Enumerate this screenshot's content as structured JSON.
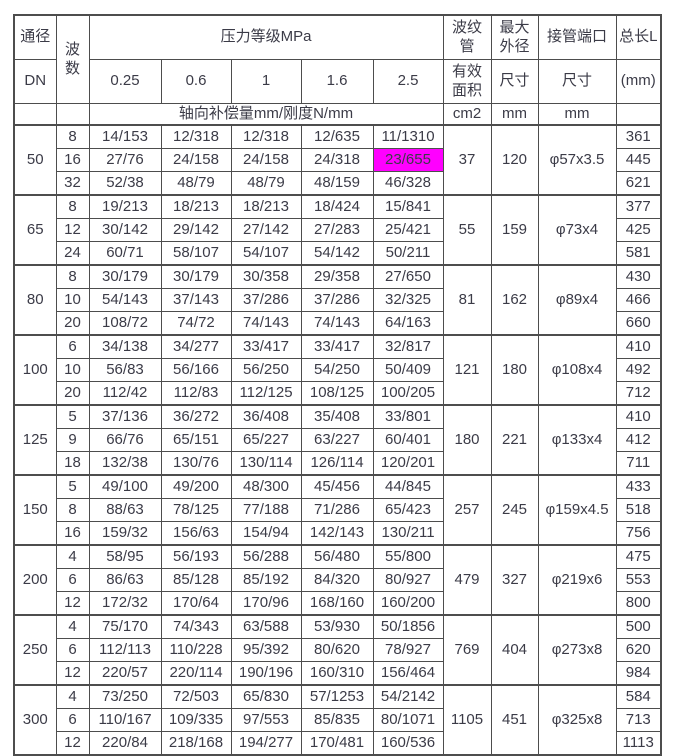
{
  "meta": {
    "table_title": "波纹管补偿器规格参数表"
  },
  "colors": {
    "text": "#3b3b47",
    "border": "#4d4d4d",
    "highlight": "#ff00ff",
    "background": "#ffffff"
  },
  "header": {
    "dn_line1": "通径",
    "dn_line2": "DN",
    "waves_label": "波\n数",
    "pressure_title": "压力等级MPa",
    "pressure_levels": [
      "0.25",
      "0.6",
      "1",
      "1.6",
      "2.5"
    ],
    "axial_label": "轴向补偿量mm/刚度N/mm",
    "bellows_line1": "波纹\n管",
    "bellows_line2": "有效\n面积",
    "bellows_unit": "cm2",
    "max_od_line1": "最大\n外径",
    "max_od_line2": "尺寸",
    "max_od_unit": "mm",
    "port_line1": "接管端口",
    "port_line2": "尺寸",
    "port_unit": "mm",
    "length_line1": "总长L",
    "length_line2": "(mm)",
    "length_unit": ""
  },
  "groups": [
    {
      "dn": "50",
      "area": "37",
      "max_od": "120",
      "port": "φ57x3.5",
      "rows": [
        {
          "waves": "8",
          "values": [
            "14/153",
            "12/318",
            "12/318",
            "12/635",
            "11/1310"
          ],
          "length": "361"
        },
        {
          "waves": "16",
          "values": [
            "27/76",
            "24/158",
            "24/158",
            "24/318",
            "23/655"
          ],
          "length": "445",
          "highlight": 4
        },
        {
          "waves": "32",
          "values": [
            "52/38",
            "48/79",
            "48/79",
            "48/159",
            "46/328"
          ],
          "length": "621"
        }
      ]
    },
    {
      "dn": "65",
      "area": "55",
      "max_od": "159",
      "port": "φ73x4",
      "rows": [
        {
          "waves": "8",
          "values": [
            "19/213",
            "18/213",
            "18/213",
            "18/424",
            "15/841"
          ],
          "length": "377"
        },
        {
          "waves": "12",
          "values": [
            "30/142",
            "29/142",
            "27/142",
            "27/283",
            "25/421"
          ],
          "length": "425"
        },
        {
          "waves": "24",
          "values": [
            "60/71",
            "58/107",
            "54/107",
            "54/142",
            "50/211"
          ],
          "length": "581"
        }
      ]
    },
    {
      "dn": "80",
      "area": "81",
      "max_od": "162",
      "port": "φ89x4",
      "rows": [
        {
          "waves": "8",
          "values": [
            "30/179",
            "30/179",
            "30/358",
            "29/358",
            "27/650"
          ],
          "length": "430"
        },
        {
          "waves": "10",
          "values": [
            "54/143",
            "37/143",
            "37/286",
            "37/286",
            "32/325"
          ],
          "length": "466"
        },
        {
          "waves": "20",
          "values": [
            "108/72",
            "74/72",
            "74/143",
            "74/143",
            "64/163"
          ],
          "length": "660"
        }
      ]
    },
    {
      "dn": "100",
      "area": "121",
      "max_od": "180",
      "port": "φ108x4",
      "rows": [
        {
          "waves": "6",
          "values": [
            "34/138",
            "34/277",
            "33/417",
            "33/417",
            "32/817"
          ],
          "length": "410"
        },
        {
          "waves": "10",
          "values": [
            "56/83",
            "56/166",
            "56/250",
            "54/250",
            "50/409"
          ],
          "length": "492"
        },
        {
          "waves": "20",
          "values": [
            "112/42",
            "112/83",
            "112/125",
            "108/125",
            "100/205"
          ],
          "length": "712"
        }
      ]
    },
    {
      "dn": "125",
      "area": "180",
      "max_od": "221",
      "port": "φ133x4",
      "rows": [
        {
          "waves": "5",
          "values": [
            "37/136",
            "36/272",
            "36/408",
            "35/408",
            "33/801"
          ],
          "length": "410"
        },
        {
          "waves": "9",
          "values": [
            "66/76",
            "65/151",
            "65/227",
            "63/227",
            "60/401"
          ],
          "length": "412"
        },
        {
          "waves": "18",
          "values": [
            "132/38",
            "130/76",
            "130/114",
            "126/114",
            "120/201"
          ],
          "length": "711"
        }
      ]
    },
    {
      "dn": "150",
      "area": "257",
      "max_od": "245",
      "port": "φ159x4.5",
      "rows": [
        {
          "waves": "5",
          "values": [
            "49/100",
            "49/200",
            "48/300",
            "45/456",
            "44/845"
          ],
          "length": "433"
        },
        {
          "waves": "8",
          "values": [
            "88/63",
            "78/125",
            "77/188",
            "71/286",
            "65/423"
          ],
          "length": "518"
        },
        {
          "waves": "16",
          "values": [
            "159/32",
            "156/63",
            "154/94",
            "142/143",
            "130/211"
          ],
          "length": "756"
        }
      ]
    },
    {
      "dn": "200",
      "area": "479",
      "max_od": "327",
      "port": "φ219x6",
      "rows": [
        {
          "waves": "4",
          "values": [
            "58/95",
            "56/193",
            "56/288",
            "56/480",
            "55/800"
          ],
          "length": "475"
        },
        {
          "waves": "6",
          "values": [
            "86/63",
            "85/128",
            "85/192",
            "84/320",
            "80/927"
          ],
          "length": "553"
        },
        {
          "waves": "12",
          "values": [
            "172/32",
            "170/64",
            "170/96",
            "168/160",
            "160/200"
          ],
          "length": "800"
        }
      ]
    },
    {
      "dn": "250",
      "area": "769",
      "max_od": "404",
      "port": "φ273x8",
      "rows": [
        {
          "waves": "4",
          "values": [
            "75/170",
            "74/343",
            "63/588",
            "53/930",
            "50/1856"
          ],
          "length": "500"
        },
        {
          "waves": "6",
          "values": [
            "112/113",
            "110/228",
            "95/392",
            "80/620",
            "78/927"
          ],
          "length": "620"
        },
        {
          "waves": "12",
          "values": [
            "220/57",
            "220/114",
            "190/196",
            "160/310",
            "156/464"
          ],
          "length": "984"
        }
      ]
    },
    {
      "dn": "300",
      "area": "1105",
      "max_od": "451",
      "port": "φ325x8",
      "rows": [
        {
          "waves": "4",
          "values": [
            "73/250",
            "72/503",
            "65/830",
            "57/1253",
            "54/2142"
          ],
          "length": "584"
        },
        {
          "waves": "6",
          "values": [
            "110/167",
            "109/335",
            "97/553",
            "85/835",
            "80/1071"
          ],
          "length": "713"
        },
        {
          "waves": "12",
          "values": [
            "220/84",
            "218/168",
            "194/277",
            "170/481",
            "160/536"
          ],
          "length": "1113"
        }
      ]
    }
  ]
}
